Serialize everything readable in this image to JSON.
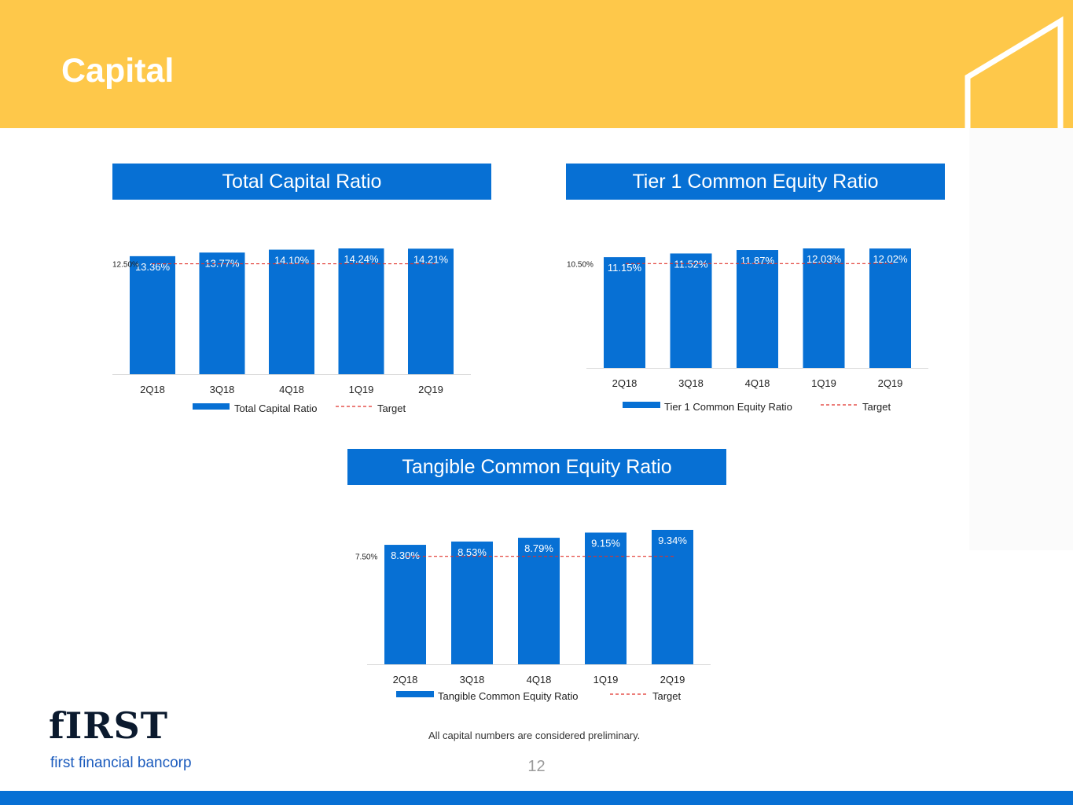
{
  "page": {
    "title": "Capital",
    "footnote": "All capital numbers are considered preliminary.",
    "page_number": "12",
    "logo_word": "fIRST",
    "logo_sub": "first financial bancorp"
  },
  "colors": {
    "header_yellow": "#fec84a",
    "bar_blue": "#0770d4",
    "target_red": "#e0322a",
    "footer_blue": "#0770d4"
  },
  "chart_data": [
    {
      "type": "bar",
      "title": "Total Capital Ratio",
      "categories": [
        "2Q18",
        "3Q18",
        "4Q18",
        "1Q19",
        "2Q19"
      ],
      "series": [
        {
          "name": "Total Capital Ratio",
          "values": [
            13.36,
            13.77,
            14.1,
            14.24,
            14.21
          ]
        }
      ],
      "value_labels": [
        "13.36%",
        "13.77%",
        "14.10%",
        "14.24%",
        "14.21%"
      ],
      "target": {
        "name": "Target",
        "value": 12.5,
        "label": "12.50%"
      },
      "ylim": [
        0,
        15.5
      ],
      "legend": "bottom",
      "legend_labels": {
        "series": "Total Capital Ratio",
        "target": "Target"
      },
      "grid": false
    },
    {
      "type": "bar",
      "title": "Tier 1 Common Equity Ratio",
      "categories": [
        "2Q18",
        "3Q18",
        "4Q18",
        "1Q19",
        "2Q19"
      ],
      "series": [
        {
          "name": "Tier 1 Common Equity Ratio",
          "values": [
            11.15,
            11.52,
            11.87,
            12.03,
            12.02
          ]
        }
      ],
      "value_labels": [
        "11.15%",
        "11.52%",
        "11.87%",
        "12.03%",
        "12.02%"
      ],
      "target": {
        "name": "Target",
        "value": 10.5,
        "label": "10.50%"
      },
      "ylim": [
        0,
        13
      ],
      "legend": "bottom",
      "legend_labels": {
        "series": "Tier 1 Common Equity Ratio",
        "target": "Target"
      },
      "grid": false
    },
    {
      "type": "bar",
      "title": "Tangible Common Equity Ratio",
      "categories": [
        "2Q18",
        "3Q18",
        "4Q18",
        "1Q19",
        "2Q19"
      ],
      "series": [
        {
          "name": "Tangible Common Equity Ratio",
          "values": [
            8.3,
            8.53,
            8.79,
            9.15,
            9.34
          ]
        }
      ],
      "value_labels": [
        "8.30%",
        "8.53%",
        "8.79%",
        "9.15%",
        "9.34%"
      ],
      "target": {
        "name": "Target",
        "value": 7.5,
        "label": "7.50%"
      },
      "ylim": [
        0,
        9.4
      ],
      "legend": "bottom",
      "legend_labels": {
        "series": "Tangible Common Equity Ratio",
        "target": "Target"
      },
      "grid": false
    }
  ]
}
